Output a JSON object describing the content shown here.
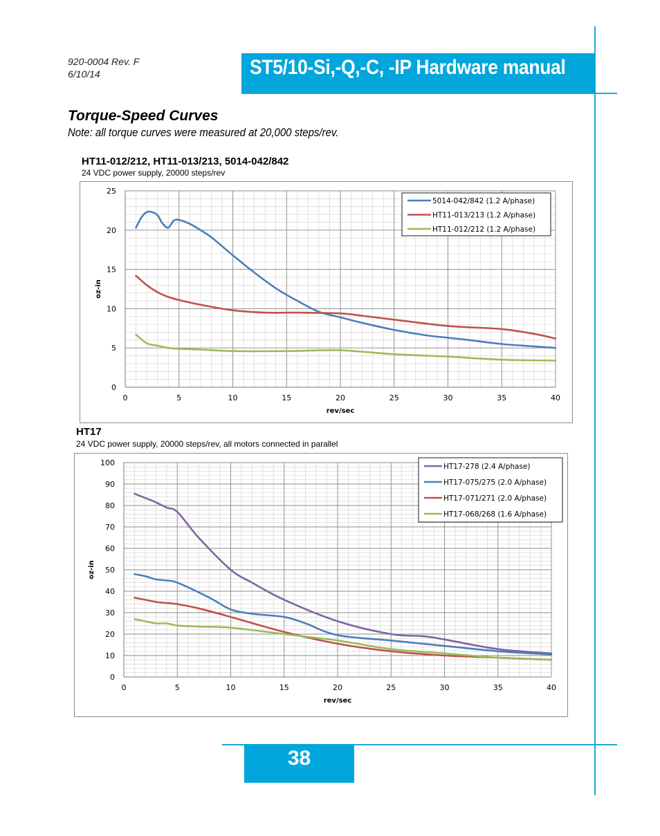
{
  "header": {
    "doc_number": "920-0004 Rev. F",
    "doc_date": "6/10/14",
    "title": "ST5/10-Si,-Q,-C, -IP Hardware manual"
  },
  "section": {
    "title": "Torque-Speed Curves",
    "note": "Note:  all torque curves were measured at 20,000 steps/rev."
  },
  "colors": {
    "accent": "#00a6dc",
    "blue": "#4a7ebb",
    "red": "#c0504d",
    "green": "#9bbb59",
    "purple": "#8064a2"
  },
  "chart_data": [
    {
      "type": "line",
      "heading": "HT11-012/212, HT11-013/213, 5014-042/842",
      "subtitle": "24 VDC power supply, 20000 steps/rev",
      "xlabel": "rev/sec",
      "ylabel": "oz-in",
      "xlim": [
        0,
        40
      ],
      "ylim": [
        0,
        25
      ],
      "xticks": [
        0,
        5,
        10,
        15,
        20,
        25,
        30,
        35,
        40
      ],
      "yticks": [
        0,
        5,
        10,
        15,
        20,
        25
      ],
      "grid": true,
      "legend_position": "top-right",
      "series": [
        {
          "name": "5014-042/842 (1.2 A/phase)",
          "color": "#4a7ebb",
          "x": [
            1,
            1.5,
            2,
            2.5,
            3,
            3.5,
            4,
            4.5,
            5,
            6,
            7,
            8,
            10,
            12,
            14,
            16,
            18,
            20,
            22,
            25,
            28,
            30,
            32,
            35,
            38,
            40
          ],
          "y": [
            20.3,
            21.6,
            22.3,
            22.3,
            21.9,
            20.8,
            20.3,
            21.2,
            21.3,
            20.8,
            20.0,
            19.1,
            16.8,
            14.6,
            12.6,
            11.0,
            9.6,
            8.9,
            8.2,
            7.3,
            6.6,
            6.3,
            6.0,
            5.5,
            5.2,
            5.0
          ]
        },
        {
          "name": "HT11-013/213 (1.2 A/phase)",
          "color": "#c0504d",
          "x": [
            1,
            2,
            3,
            4,
            5,
            7,
            10,
            13,
            16,
            20,
            22,
            25,
            30,
            35,
            38,
            40
          ],
          "y": [
            14.2,
            13.0,
            12.1,
            11.5,
            11.1,
            10.5,
            9.8,
            9.5,
            9.5,
            9.4,
            9.1,
            8.6,
            7.8,
            7.4,
            6.8,
            6.2
          ]
        },
        {
          "name": "HT11-012/212 (1.2 A/phase)",
          "color": "#9bbb59",
          "x": [
            1,
            2,
            3,
            4,
            5,
            7,
            10,
            15,
            20,
            25,
            30,
            35,
            40
          ],
          "y": [
            6.7,
            5.6,
            5.3,
            5.0,
            4.9,
            4.8,
            4.6,
            4.6,
            4.7,
            4.2,
            3.9,
            3.5,
            3.4
          ]
        }
      ]
    },
    {
      "type": "line",
      "heading": "HT17",
      "subtitle": "24 VDC power supply, 20000 steps/rev, all motors connected in parallel",
      "xlabel": "rev/sec",
      "ylabel": "oz-in",
      "xlim": [
        0,
        40
      ],
      "ylim": [
        0,
        100
      ],
      "xticks": [
        0,
        5,
        10,
        15,
        20,
        25,
        30,
        35,
        40
      ],
      "yticks": [
        0,
        10,
        20,
        30,
        40,
        50,
        60,
        70,
        80,
        90,
        100
      ],
      "grid": true,
      "legend_position": "top-right",
      "series": [
        {
          "name": "HT17-278 (2.4 A/phase)",
          "color": "#8064a2",
          "x": [
            1,
            2,
            3,
            4,
            5,
            7,
            10,
            12,
            15,
            20,
            25,
            28,
            30,
            35,
            40
          ],
          "y": [
            85.5,
            83.5,
            81.5,
            79,
            77,
            65,
            50,
            44,
            36,
            26,
            20,
            19,
            17.5,
            13,
            11
          ]
        },
        {
          "name": "HT17-075/275 (2.0 A/phase)",
          "color": "#4a7ebb",
          "x": [
            1,
            2,
            3,
            4,
            5,
            8,
            10,
            12,
            15,
            17,
            20,
            25,
            30,
            35,
            40
          ],
          "y": [
            48,
            47,
            45.5,
            45,
            44,
            37,
            31.5,
            29.5,
            28,
            25,
            19.5,
            17,
            14.5,
            12,
            10.5
          ]
        },
        {
          "name": "HT17-071/271 (2.0 A/phase)",
          "color": "#c0504d",
          "x": [
            1,
            2,
            3,
            4,
            5,
            7,
            10,
            15,
            20,
            25,
            30,
            35,
            40
          ],
          "y": [
            37,
            36,
            35,
            34.5,
            34,
            32,
            28,
            21,
            15.5,
            12,
            10,
            9,
            8
          ]
        },
        {
          "name": "HT17-068/268 (1.6 A/phase)",
          "color": "#9bbb59",
          "x": [
            1,
            2,
            3,
            4,
            5,
            7,
            10,
            15,
            20,
            25,
            30,
            35,
            40
          ],
          "y": [
            27,
            26,
            25,
            25,
            24,
            23.5,
            23,
            20,
            17,
            13,
            11,
            9,
            8
          ]
        }
      ]
    }
  ],
  "footer": {
    "page_number": "38"
  }
}
